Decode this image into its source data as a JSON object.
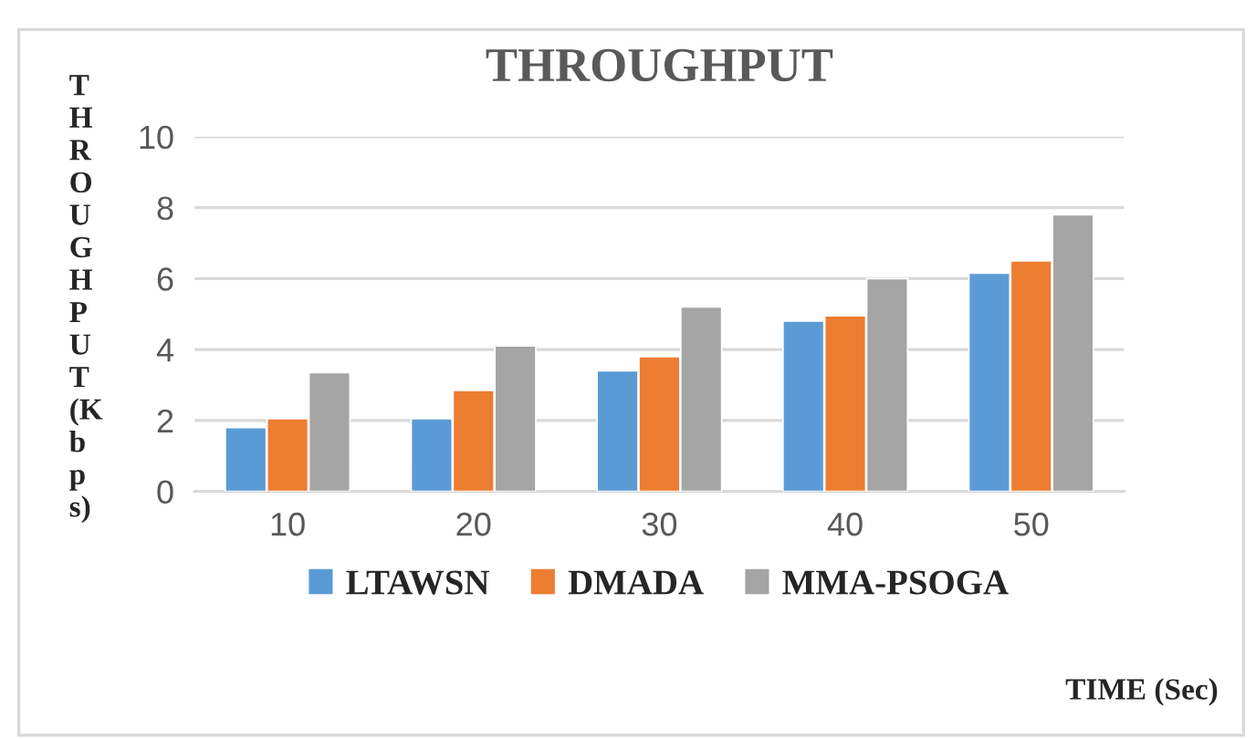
{
  "chart_data": {
    "type": "bar",
    "title": "THROUGHPUT",
    "xlabel": "TIME (Sec)",
    "ylabel": "THROUGHPUT(Kbps)",
    "categories": [
      "10",
      "20",
      "30",
      "40",
      "50"
    ],
    "series": [
      {
        "name": "LTAWSN",
        "color": "#5b9bd5",
        "values": [
          1.8,
          2.05,
          3.4,
          4.8,
          6.15
        ]
      },
      {
        "name": "DMADA",
        "color": "#ed7d31",
        "values": [
          2.05,
          2.85,
          3.8,
          4.95,
          6.5
        ]
      },
      {
        "name": "MMA-PSOGA",
        "color": "#a5a5a5",
        "values": [
          3.35,
          4.1,
          5.2,
          6.0,
          7.8
        ]
      }
    ],
    "ylim": [
      0,
      10
    ],
    "yticks": [
      0,
      2,
      4,
      6,
      8,
      10
    ],
    "grid": "y",
    "legend": "bottom"
  }
}
